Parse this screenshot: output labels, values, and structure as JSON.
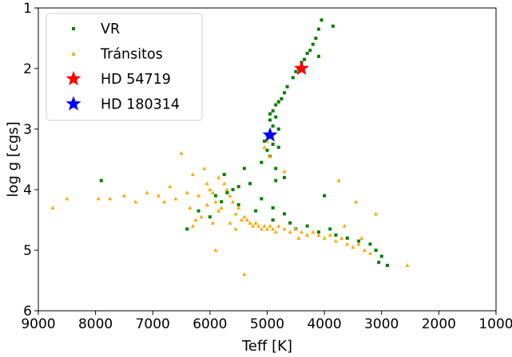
{
  "chart_data": {
    "type": "scatter",
    "title": "",
    "xlabel": "Teff [K]",
    "ylabel": "log g [cgs]",
    "xlim": [
      9000,
      1000
    ],
    "ylim": [
      6,
      1
    ],
    "x_reversed": true,
    "y_reversed": true,
    "x_ticks": [
      9000,
      8000,
      7000,
      6000,
      5000,
      4000,
      3000,
      2000,
      1000
    ],
    "y_ticks": [
      1,
      2,
      3,
      4,
      5,
      6
    ],
    "grid": false,
    "legend_position": "upper-left",
    "series": [
      {
        "name": "VR",
        "marker": "square",
        "color": "#008000",
        "points": [
          [
            4050,
            1.2
          ],
          [
            3850,
            1.3
          ],
          [
            4100,
            1.35
          ],
          [
            4150,
            1.5
          ],
          [
            4200,
            1.6
          ],
          [
            4250,
            1.7
          ],
          [
            4300,
            1.75
          ],
          [
            4100,
            1.8
          ],
          [
            4350,
            1.85
          ],
          [
            4400,
            1.9
          ],
          [
            4450,
            2.0
          ],
          [
            4500,
            2.05
          ],
          [
            4550,
            2.15
          ],
          [
            4650,
            2.3
          ],
          [
            4700,
            2.4
          ],
          [
            4750,
            2.5
          ],
          [
            4800,
            2.55
          ],
          [
            4850,
            2.6
          ],
          [
            4900,
            2.7
          ],
          [
            4950,
            2.75
          ],
          [
            4850,
            2.8
          ],
          [
            4950,
            2.85
          ],
          [
            4900,
            2.95
          ],
          [
            4800,
            3.0
          ],
          [
            4950,
            3.05
          ],
          [
            5000,
            3.1
          ],
          [
            5050,
            3.2
          ],
          [
            4900,
            3.25
          ],
          [
            4800,
            3.3
          ],
          [
            5000,
            3.35
          ],
          [
            4950,
            3.45
          ],
          [
            5100,
            3.55
          ],
          [
            4850,
            3.65
          ],
          [
            5400,
            3.65
          ],
          [
            4700,
            3.8
          ],
          [
            4850,
            3.85
          ],
          [
            5300,
            3.9
          ],
          [
            5500,
            3.95
          ],
          [
            5600,
            4.0
          ],
          [
            5700,
            4.05
          ],
          [
            5900,
            4.1
          ],
          [
            5800,
            4.2
          ],
          [
            5500,
            4.25
          ],
          [
            6200,
            4.35
          ],
          [
            6000,
            4.45
          ],
          [
            5200,
            4.35
          ],
          [
            4900,
            4.3
          ],
          [
            4700,
            4.4
          ],
          [
            4900,
            4.5
          ],
          [
            4600,
            4.55
          ],
          [
            4300,
            4.6
          ],
          [
            4500,
            4.65
          ],
          [
            4100,
            4.7
          ],
          [
            3900,
            4.65
          ],
          [
            3800,
            4.75
          ],
          [
            3600,
            4.8
          ],
          [
            3400,
            4.85
          ],
          [
            3200,
            4.9
          ],
          [
            3100,
            5.0
          ],
          [
            3000,
            5.1
          ],
          [
            3050,
            5.2
          ],
          [
            2900,
            5.25
          ],
          [
            5100,
            4.15
          ],
          [
            4000,
            4.1
          ],
          [
            6400,
            4.65
          ],
          [
            7900,
            3.85
          ],
          [
            5750,
            3.75
          ]
        ]
      },
      {
        "name": "Tránsitos",
        "marker": "triangle",
        "color": "#ffa500",
        "points": [
          [
            8750,
            4.3
          ],
          [
            8500,
            4.15
          ],
          [
            7950,
            4.15
          ],
          [
            7750,
            4.15
          ],
          [
            7500,
            4.1
          ],
          [
            7300,
            4.2
          ],
          [
            7100,
            4.05
          ],
          [
            6900,
            4.1
          ],
          [
            6800,
            4.2
          ],
          [
            6600,
            4.15
          ],
          [
            6500,
            3.4
          ],
          [
            6400,
            4.05
          ],
          [
            6300,
            3.75
          ],
          [
            6200,
            4.1
          ],
          [
            6100,
            3.65
          ],
          [
            6050,
            3.9
          ],
          [
            6000,
            4.0
          ],
          [
            5950,
            4.05
          ],
          [
            5900,
            4.2
          ],
          [
            5850,
            3.8
          ],
          [
            5800,
            4.3
          ],
          [
            5750,
            3.9
          ],
          [
            5700,
            4.0
          ],
          [
            5650,
            4.1
          ],
          [
            5600,
            4.2
          ],
          [
            5550,
            4.4
          ],
          [
            5500,
            4.3
          ],
          [
            5450,
            4.5
          ],
          [
            5400,
            4.45
          ],
          [
            5350,
            4.5
          ],
          [
            5300,
            4.55
          ],
          [
            5250,
            4.6
          ],
          [
            5200,
            4.55
          ],
          [
            5150,
            4.6
          ],
          [
            5100,
            4.65
          ],
          [
            5050,
            4.6
          ],
          [
            5000,
            4.65
          ],
          [
            4950,
            4.6
          ],
          [
            4900,
            4.65
          ],
          [
            4850,
            4.7
          ],
          [
            4800,
            4.6
          ],
          [
            4700,
            4.65
          ],
          [
            4600,
            4.7
          ],
          [
            4500,
            4.65
          ],
          [
            4400,
            4.7
          ],
          [
            4300,
            4.75
          ],
          [
            4200,
            4.7
          ],
          [
            4100,
            4.75
          ],
          [
            4000,
            4.8
          ],
          [
            3900,
            4.75
          ],
          [
            3800,
            4.85
          ],
          [
            3700,
            4.8
          ],
          [
            3600,
            4.9
          ],
          [
            3500,
            4.95
          ],
          [
            3400,
            4.9
          ],
          [
            3300,
            5.0
          ],
          [
            3200,
            5.05
          ],
          [
            2550,
            5.25
          ],
          [
            6300,
            4.6
          ],
          [
            5400,
            5.4
          ],
          [
            5900,
            5.0
          ],
          [
            4700,
            3.7
          ],
          [
            4950,
            3.45
          ],
          [
            5050,
            3.3
          ],
          [
            5000,
            3.2
          ],
          [
            3750,
            3.85
          ],
          [
            3450,
            4.2
          ],
          [
            3100,
            4.4
          ],
          [
            6700,
            3.95
          ],
          [
            6150,
            4.45
          ],
          [
            5650,
            4.55
          ],
          [
            5850,
            4.35
          ],
          [
            6050,
            4.25
          ],
          [
            6350,
            4.3
          ],
          [
            6250,
            4.5
          ],
          [
            5950,
            4.55
          ],
          [
            5550,
            4.65
          ],
          [
            4450,
            4.8
          ],
          [
            3650,
            4.6
          ],
          [
            3350,
            4.8
          ]
        ]
      },
      {
        "name": "HD 54719",
        "marker": "star",
        "color": "#ff0000",
        "points": [
          [
            4400,
            2.0
          ]
        ]
      },
      {
        "name": "HD 180314",
        "marker": "star",
        "color": "#0000ff",
        "points": [
          [
            4950,
            3.1
          ]
        ]
      }
    ]
  }
}
